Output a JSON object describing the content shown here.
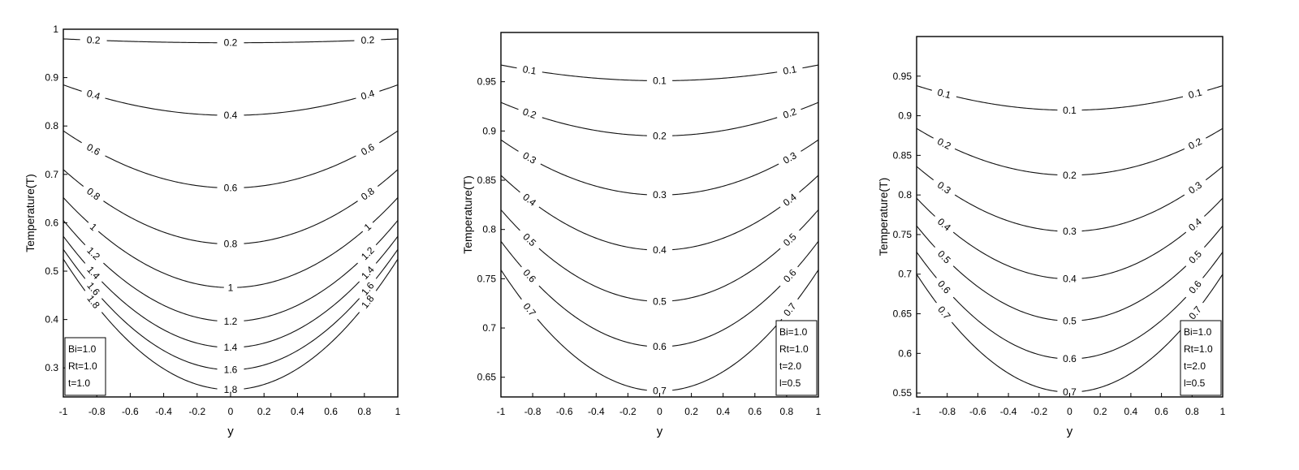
{
  "chart_data": [
    {
      "type": "line",
      "subtype": "contour",
      "xlabel": "y",
      "ylabel": "Temperature(T)",
      "xlim": [
        -1,
        1
      ],
      "ylim": [
        0.24,
        1.0
      ],
      "xticks": [
        "-1",
        "-0.8",
        "-0.6",
        "-0.4",
        "-0.2",
        "0",
        "0.2",
        "0.4",
        "0.6",
        "0.8",
        "1"
      ],
      "yticks": [
        "0.3",
        "0.4",
        "0.5",
        "0.6",
        "0.7",
        "0.8",
        "0.9",
        "1"
      ],
      "ytick_values": [
        0.3,
        0.4,
        0.5,
        0.6,
        0.7,
        0.8,
        0.9,
        1.0
      ],
      "legend": [
        "Bi=1.0",
        "Rt=1.0",
        "t=1.0"
      ],
      "legend_position": "bottom-left",
      "series": [
        {
          "label": "0.2",
          "edge": 0.98,
          "center": 0.972
        },
        {
          "label": "0.4",
          "edge": 0.885,
          "center": 0.822
        },
        {
          "label": "0.6",
          "edge": 0.79,
          "center": 0.672
        },
        {
          "label": "0.8",
          "edge": 0.71,
          "center": 0.556
        },
        {
          "label": "1",
          "edge": 0.652,
          "center": 0.466
        },
        {
          "label": "1.2",
          "edge": 0.605,
          "center": 0.396
        },
        {
          "label": "1.4",
          "edge": 0.572,
          "center": 0.342
        },
        {
          "label": "1.6",
          "edge": 0.545,
          "center": 0.296
        },
        {
          "label": "1.8",
          "edge": 0.525,
          "center": 0.255
        }
      ]
    },
    {
      "type": "line",
      "subtype": "contour",
      "xlabel": "y",
      "ylabel": "Temperature(T)",
      "xlim": [
        -1,
        1
      ],
      "ylim": [
        0.63,
        1.0
      ],
      "xticks": [
        "-1",
        "-0.8",
        "-0.6",
        "-0.4",
        "-0.2",
        "0",
        "0.2",
        "0.4",
        "0.6",
        "0.8",
        "1"
      ],
      "yticks": [
        "0.65",
        "0.7",
        "0.75",
        "0.8",
        "0.85",
        "0.9",
        "0.95"
      ],
      "ytick_values": [
        0.65,
        0.7,
        0.75,
        0.8,
        0.85,
        0.9,
        0.95
      ],
      "legend": [
        "Bi=1.0",
        "Rt=1.0",
        "t=2.0",
        "l=0.5"
      ],
      "legend_position": "bottom-right",
      "series": [
        {
          "label": "0.1",
          "edge": 0.967,
          "center": 0.951
        },
        {
          "label": "0.2",
          "edge": 0.929,
          "center": 0.895
        },
        {
          "label": "0.3",
          "edge": 0.891,
          "center": 0.835
        },
        {
          "label": "0.4",
          "edge": 0.855,
          "center": 0.779
        },
        {
          "label": "0.5",
          "edge": 0.82,
          "center": 0.727
        },
        {
          "label": "0.6",
          "edge": 0.788,
          "center": 0.681
        },
        {
          "label": "0.7",
          "edge": 0.759,
          "center": 0.636
        }
      ]
    },
    {
      "type": "line",
      "subtype": "contour",
      "xlabel": "y",
      "ylabel": "Temperature(T)",
      "xlim": [
        -1,
        1
      ],
      "ylim": [
        0.545,
        1.0
      ],
      "xticks": [
        "-1",
        "-0.8",
        "-0.6",
        "-0.4",
        "-0.2",
        "0",
        "0.2",
        "0.4",
        "0.6",
        "0.8",
        "1"
      ],
      "yticks": [
        "0.55",
        "0.6",
        "0.65",
        "0.7",
        "0.75",
        "0.8",
        "0.85",
        "0.9",
        "0.95"
      ],
      "ytick_values": [
        0.55,
        0.6,
        0.65,
        0.7,
        0.75,
        0.8,
        0.85,
        0.9,
        0.95
      ],
      "legend": [
        "Bi=1.0",
        "Rt=1.0",
        "t=2.0",
        "l=0.5"
      ],
      "legend_position": "bottom-right",
      "series": [
        {
          "label": "0.1",
          "edge": 0.938,
          "center": 0.907
        },
        {
          "label": "0.2",
          "edge": 0.884,
          "center": 0.825
        },
        {
          "label": "0.3",
          "edge": 0.836,
          "center": 0.754
        },
        {
          "label": "0.4",
          "edge": 0.796,
          "center": 0.694
        },
        {
          "label": "0.5",
          "edge": 0.761,
          "center": 0.641
        },
        {
          "label": "0.6",
          "edge": 0.728,
          "center": 0.593
        },
        {
          "label": "0.7",
          "edge": 0.7,
          "center": 0.551
        }
      ]
    }
  ]
}
